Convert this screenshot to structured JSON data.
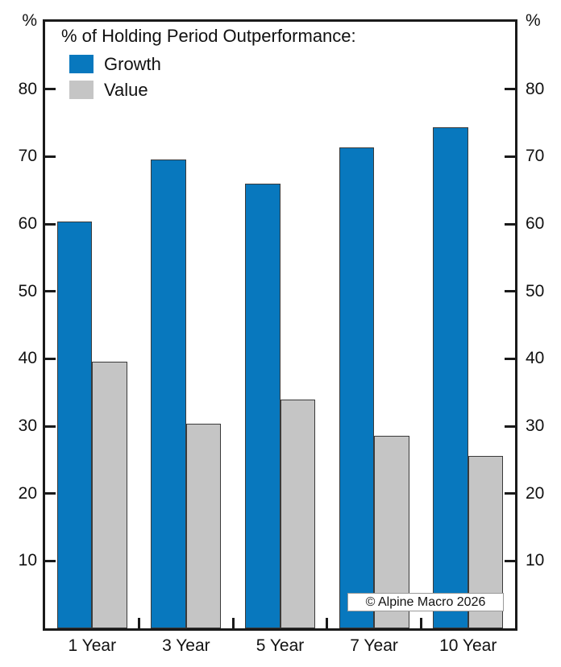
{
  "axes": {
    "left_unit": "%",
    "right_unit": "%"
  },
  "legend": {
    "title": "% of Holding Period Outperformance:",
    "items": [
      {
        "label": "Growth",
        "color": "#0878BE"
      },
      {
        "label": "Value",
        "color": "#C5C5C5"
      }
    ]
  },
  "watermark": {
    "text": "© Alpine Macro 2026"
  },
  "chart_data": {
    "type": "bar",
    "title": "% of Holding Period Outperformance:",
    "categories": [
      "1 Year",
      "3 Year",
      "5 Year",
      "7 Year",
      "10 Year"
    ],
    "series": [
      {
        "name": "Growth",
        "color": "#0878BE",
        "values": [
          60.4,
          69.6,
          66.0,
          71.4,
          74.4
        ]
      },
      {
        "name": "Value",
        "color": "#C5C5C5",
        "values": [
          39.6,
          30.4,
          34.0,
          28.6,
          25.6
        ]
      }
    ],
    "xlabel": "",
    "ylabel": "%",
    "ylim": [
      0,
      90
    ],
    "yticks": [
      10,
      20,
      30,
      40,
      50,
      60,
      70,
      80
    ],
    "grid": false,
    "legend_position": "top-left inside plot",
    "dual_axis_labels": true,
    "annotation": "© Alpine Macro 2026"
  }
}
